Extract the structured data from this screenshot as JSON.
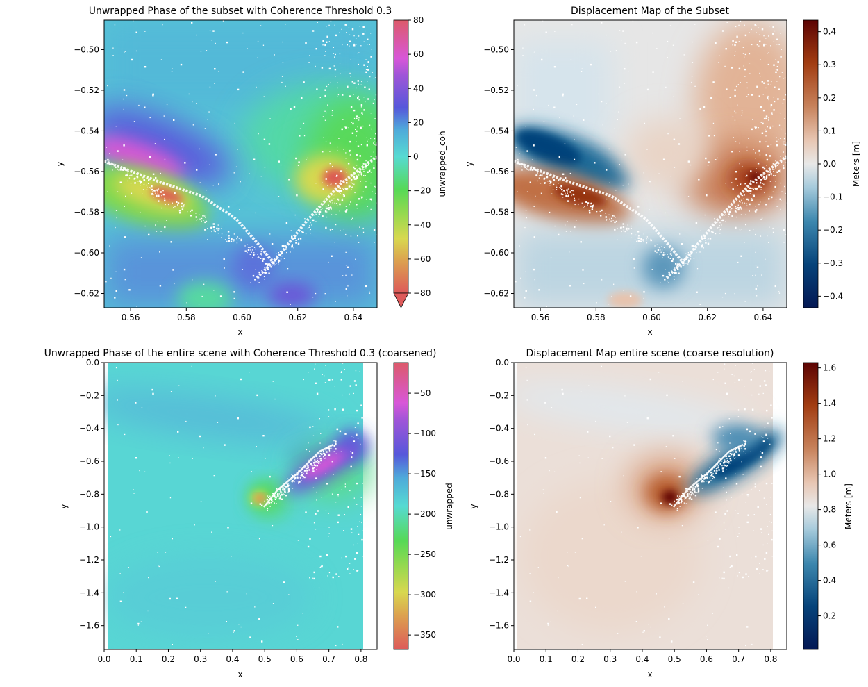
{
  "figure": {
    "background": "#ffffff"
  },
  "chart_data": [
    {
      "id": "tl",
      "type": "heatmap",
      "title": "Unwrapped Phase of the subset with Coherence Threshold 0.3",
      "xlabel": "x",
      "ylabel": "y",
      "xlim": [
        0.5505,
        0.6485
      ],
      "ylim": [
        -0.627,
        -0.4855
      ],
      "xticks": [
        0.56,
        0.58,
        0.6,
        0.62,
        0.64
      ],
      "xtick_labels": [
        "0.56",
        "0.58",
        "0.60",
        "0.62",
        "0.64"
      ],
      "yticks": [
        -0.5,
        -0.52,
        -0.54,
        -0.56,
        -0.58,
        -0.6,
        -0.62
      ],
      "ytick_labels": [
        "−0.50",
        "−0.52",
        "−0.54",
        "−0.56",
        "−0.58",
        "−0.60",
        "−0.62"
      ],
      "colormap": "hue-cyclic",
      "colorbar": {
        "label": "unwrapped_coh",
        "range": [
          -80,
          80
        ],
        "ticks": [
          80,
          60,
          40,
          20,
          0,
          -20,
          -40,
          -60,
          -80
        ],
        "tick_labels": [
          "80",
          "60",
          "40",
          "20",
          "0",
          "−20",
          "−40",
          "−60",
          "−80"
        ],
        "extend": "min"
      },
      "features": [
        {
          "kind": "high",
          "x": 0.573,
          "y": -0.553,
          "value": 55,
          "note": "magenta lobe north of fault (west)"
        },
        {
          "kind": "low",
          "x": 0.571,
          "y": -0.571,
          "value": -75,
          "note": "red/yellow lobe south of fault (west)"
        },
        {
          "kind": "low",
          "x": 0.635,
          "y": -0.563,
          "value": -78,
          "note": "red lobe east"
        },
        {
          "kind": "high",
          "x": 0.606,
          "y": -0.611,
          "value": 30,
          "note": "blue/purple lobe near fault junction"
        }
      ]
    },
    {
      "id": "tr",
      "type": "heatmap",
      "title": "Displacement Map of the Subset",
      "xlabel": "x",
      "ylabel": "y",
      "xlim": [
        0.5505,
        0.6485
      ],
      "ylim": [
        -0.627,
        -0.4855
      ],
      "xticks": [
        0.56,
        0.58,
        0.6,
        0.62,
        0.64
      ],
      "xtick_labels": [
        "0.56",
        "0.58",
        "0.60",
        "0.62",
        "0.64"
      ],
      "yticks": [
        -0.5,
        -0.52,
        -0.54,
        -0.56,
        -0.58,
        -0.6,
        -0.62
      ],
      "ytick_labels": [
        "−0.50",
        "−0.52",
        "−0.54",
        "−0.56",
        "−0.58",
        "−0.60",
        "−0.62"
      ],
      "colormap": "RdBu_r-like (brown-white-blue)",
      "colorbar": {
        "label": "Meters [m]",
        "range": [
          -0.435,
          0.435
        ],
        "ticks": [
          0.4,
          0.3,
          0.2,
          0.1,
          0.0,
          -0.1,
          -0.2,
          -0.3,
          -0.4
        ],
        "tick_labels": [
          "0.4",
          "0.3",
          "0.2",
          "0.1",
          "0.0",
          "−0.1",
          "−0.2",
          "−0.3",
          "−0.4"
        ]
      }
    },
    {
      "id": "bl",
      "type": "heatmap",
      "title": "Unwrapped Phase of the entire scene with Coherence Threshold 0.3 (coarsened)",
      "xlabel": "x",
      "ylabel": "y",
      "xlim": [
        0.0,
        0.85
      ],
      "ylim": [
        -1.745,
        0.0
      ],
      "data_extent_x": [
        0.0,
        0.81
      ],
      "xticks": [
        0.0,
        0.1,
        0.2,
        0.3,
        0.4,
        0.5,
        0.6,
        0.7,
        0.8
      ],
      "xtick_labels": [
        "0.0",
        "0.1",
        "0.2",
        "0.3",
        "0.4",
        "0.5",
        "0.6",
        "0.7",
        "0.8"
      ],
      "yticks": [
        0.0,
        -0.2,
        -0.4,
        -0.6,
        -0.8,
        -1.0,
        -1.2,
        -1.4,
        -1.6
      ],
      "ytick_labels": [
        "0.0",
        "−0.2",
        "−0.4",
        "−0.6",
        "−0.8",
        "−1.0",
        "−1.2",
        "−1.4",
        "−1.6"
      ],
      "colormap": "hue-cyclic",
      "colorbar": {
        "label": "unwrapped",
        "range": [
          -368,
          -12
        ],
        "ticks": [
          -50,
          -100,
          -150,
          -200,
          -250,
          -300,
          -350
        ],
        "tick_labels": [
          "−50",
          "−100",
          "−150",
          "−200",
          "−250",
          "−300",
          "−350"
        ]
      }
    },
    {
      "id": "br",
      "type": "heatmap",
      "title": "Displacement Map entire scene (coarse resolution)",
      "xlabel": "x",
      "ylabel": "y",
      "xlim": [
        0.0,
        0.85
      ],
      "ylim": [
        -1.745,
        0.0
      ],
      "data_extent_x": [
        0.0,
        0.81
      ],
      "xticks": [
        0.0,
        0.1,
        0.2,
        0.3,
        0.4,
        0.5,
        0.6,
        0.7,
        0.8
      ],
      "xtick_labels": [
        "0.0",
        "0.1",
        "0.2",
        "0.3",
        "0.4",
        "0.5",
        "0.6",
        "0.7",
        "0.8"
      ],
      "yticks": [
        0.0,
        -0.2,
        -0.4,
        -0.6,
        -0.8,
        -1.0,
        -1.2,
        -1.4,
        -1.6
      ],
      "ytick_labels": [
        "0.0",
        "−0.2",
        "−0.4",
        "−0.6",
        "−0.8",
        "−1.0",
        "−1.2",
        "−1.4",
        "−1.6"
      ],
      "colormap": "RdBu_r-like (brown-white-blue)",
      "colorbar": {
        "label": "Meters [m]",
        "range": [
          0.01,
          1.63
        ],
        "ticks": [
          1.6,
          1.4,
          1.2,
          1.0,
          0.8,
          0.6,
          0.4,
          0.2
        ],
        "tick_labels": [
          "1.6",
          "1.4",
          "1.2",
          "1.0",
          "0.8",
          "0.6",
          "0.4",
          "0.2"
        ]
      }
    }
  ]
}
